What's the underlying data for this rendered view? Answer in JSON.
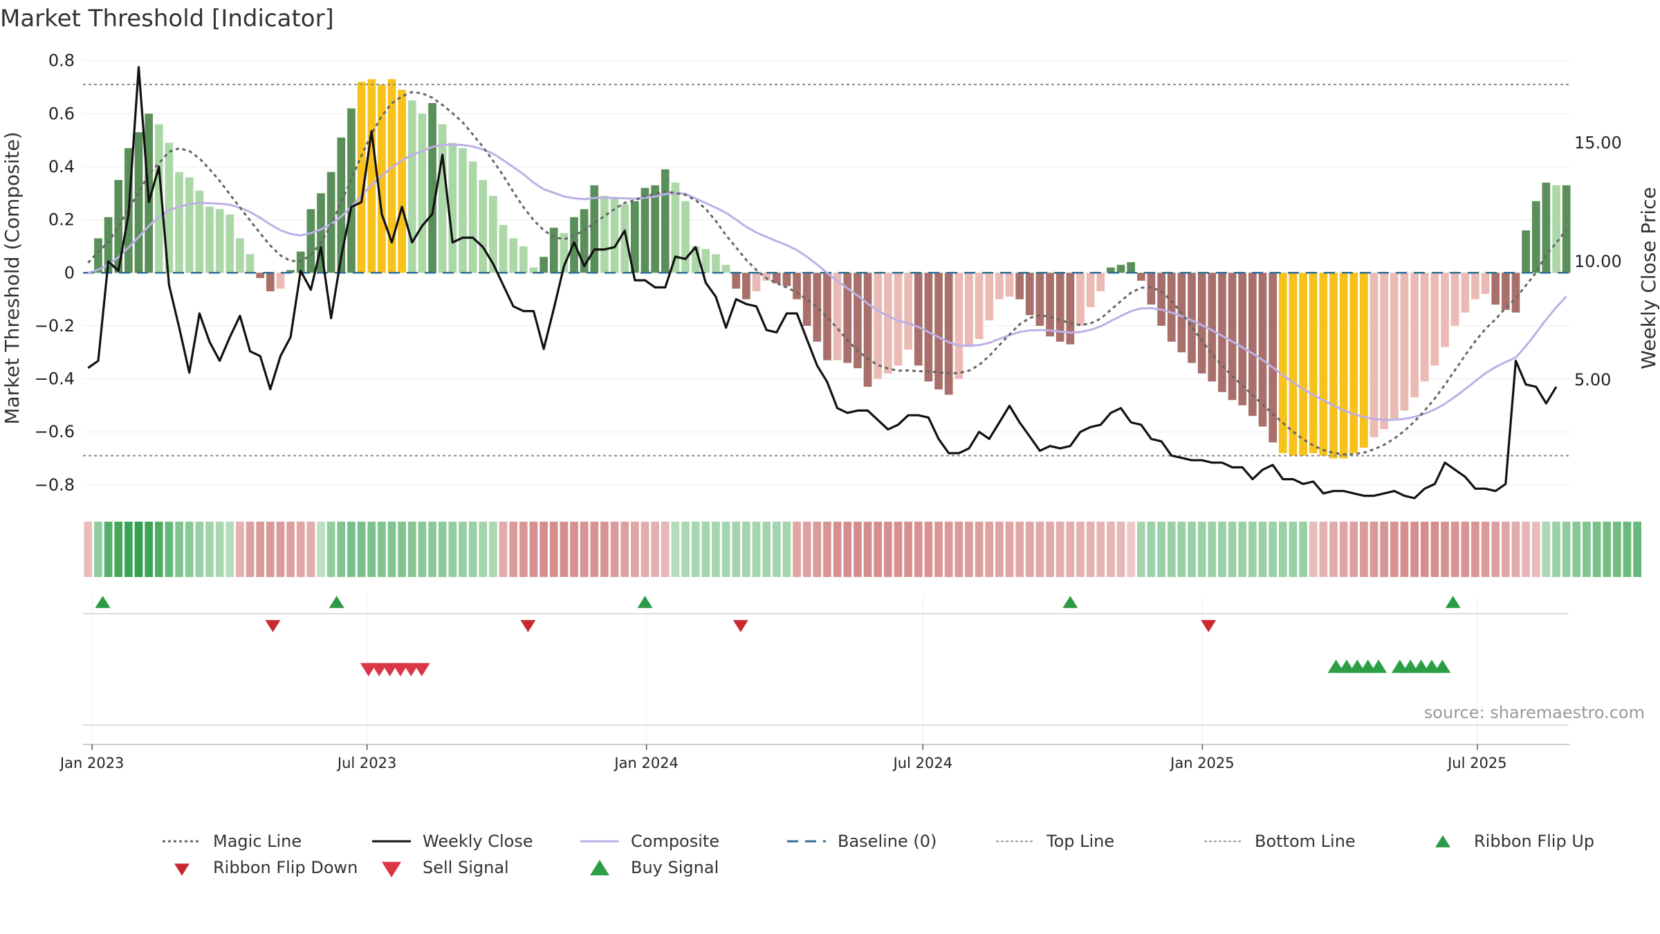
{
  "chart_data": {
    "type": "bar",
    "title": "Market Threshold [Indicator]",
    "source": "source: sharemaestro.com",
    "y_left": {
      "label": "Market Threshold (Composite)",
      "range": [
        -0.85,
        0.82
      ],
      "ticks": [
        0.8,
        0.6,
        0.4,
        0.2,
        0,
        -0.2,
        -0.4,
        -0.6,
        -0.8
      ],
      "tick_labels": [
        "0.8",
        "0.6",
        "0.4",
        "0.2",
        "0",
        "−0.2",
        "−0.4",
        "−0.6",
        "−0.8"
      ]
    },
    "y_right": {
      "label": "Weekly Close Price",
      "range": [
        0,
        18.7
      ],
      "ticks": [
        15,
        10,
        5
      ],
      "tick_labels": [
        "15.00",
        "10.00",
        "5.00"
      ]
    },
    "x_axis": {
      "start": "2022-12-26",
      "end": "2025-09-01",
      "ticks": [
        {
          "date": "2023-01-01",
          "label": "Jan 2023"
        },
        {
          "date": "2023-07-01",
          "label": "Jul 2023"
        },
        {
          "date": "2024-01-01",
          "label": "Jan 2024"
        },
        {
          "date": "2024-07-01",
          "label": "Jul 2024"
        },
        {
          "date": "2025-01-01",
          "label": "Jan 2025"
        },
        {
          "date": "2025-07-01",
          "label": "Jul 2025"
        }
      ]
    },
    "reference_lines": {
      "top_line": 0.71,
      "bottom_line": -0.69,
      "baseline": 0
    },
    "colors": {
      "dark_green": "#5a8f5a",
      "light_green": "#acd8a8",
      "dark_red": "#a9706b",
      "light_red": "#ebbab5",
      "gold": "#f7c21b",
      "close": "#111111",
      "composite": "#bcb0e6",
      "magic": "#666666",
      "baseline": "#2f6f95",
      "ribbon_flip_up": "#2b9a45",
      "ribbon_flip_down": "#c8282f",
      "sell": "#dc3545",
      "buy": "#2e9e46"
    },
    "composite_bars": [
      0.0,
      0.13,
      0.21,
      0.35,
      0.47,
      0.53,
      0.6,
      0.56,
      0.49,
      0.38,
      0.36,
      0.31,
      0.25,
      0.24,
      0.22,
      0.13,
      0.07,
      -0.02,
      -0.07,
      -0.06,
      0.01,
      0.08,
      0.24,
      0.3,
      0.38,
      0.51,
      0.62,
      0.72,
      0.73,
      0.71,
      0.73,
      0.69,
      0.65,
      0.6,
      0.64,
      0.56,
      0.49,
      0.47,
      0.42,
      0.35,
      0.29,
      0.18,
      0.13,
      0.1,
      0.02,
      0.06,
      0.17,
      0.15,
      0.21,
      0.24,
      0.33,
      0.29,
      0.28,
      0.26,
      0.27,
      0.32,
      0.33,
      0.39,
      0.34,
      0.27,
      0.1,
      0.09,
      0.07,
      0.03,
      -0.06,
      -0.1,
      -0.07,
      -0.03,
      -0.04,
      -0.05,
      -0.1,
      -0.2,
      -0.26,
      -0.33,
      -0.33,
      -0.34,
      -0.36,
      -0.43,
      -0.4,
      -0.38,
      -0.35,
      -0.29,
      -0.35,
      -0.41,
      -0.44,
      -0.46,
      -0.4,
      -0.28,
      -0.25,
      -0.18,
      -0.1,
      -0.09,
      -0.1,
      -0.16,
      -0.2,
      -0.24,
      -0.26,
      -0.27,
      -0.2,
      -0.13,
      -0.07,
      0.02,
      0.03,
      0.04,
      -0.03,
      -0.12,
      -0.2,
      -0.26,
      -0.3,
      -0.34,
      -0.38,
      -0.41,
      -0.45,
      -0.48,
      -0.5,
      -0.54,
      -0.58,
      -0.64,
      -0.68,
      -0.69,
      -0.69,
      -0.68,
      -0.69,
      -0.7,
      -0.7,
      -0.68,
      -0.66,
      -0.62,
      -0.59,
      -0.55,
      -0.52,
      -0.47,
      -0.41,
      -0.35,
      -0.28,
      -0.2,
      -0.15,
      -0.1,
      -0.08,
      -0.12,
      -0.14,
      -0.15,
      0.16,
      0.27,
      0.34,
      0.33,
      0.33
    ],
    "weekly_close": [
      5.5,
      5.8,
      10.0,
      9.6,
      12.0,
      18.2,
      12.5,
      14.0,
      9.0,
      7.2,
      5.3,
      7.8,
      6.6,
      5.8,
      6.8,
      7.7,
      6.2,
      6.0,
      4.6,
      6.0,
      6.8,
      9.6,
      8.8,
      10.6,
      7.6,
      10.2,
      12.3,
      12.5,
      15.5,
      12.0,
      10.8,
      12.3,
      10.8,
      11.5,
      12.0,
      14.5,
      10.8,
      11.0,
      11.0,
      10.6,
      9.9,
      9.0,
      8.1,
      7.9,
      7.9,
      6.3,
      8.0,
      9.8,
      10.8,
      9.8,
      10.5,
      10.5,
      10.6,
      11.3,
      9.2,
      9.2,
      8.9,
      8.9,
      10.2,
      10.1,
      10.6,
      9.1,
      8.5,
      7.2,
      8.4,
      8.2,
      8.1,
      7.1,
      7.0,
      7.8,
      7.8,
      6.7,
      5.6,
      4.9,
      3.8,
      3.6,
      3.7,
      3.7,
      3.3,
      2.9,
      3.1,
      3.5,
      3.5,
      3.4,
      2.5,
      1.9,
      1.9,
      2.1,
      2.8,
      2.5,
      3.2,
      3.9,
      3.2,
      2.6,
      2.0,
      2.2,
      2.1,
      2.2,
      2.8,
      3.0,
      3.1,
      3.6,
      3.8,
      3.2,
      3.1,
      2.5,
      2.4,
      1.8,
      1.7,
      1.6,
      1.6,
      1.5,
      1.5,
      1.3,
      1.3,
      0.8,
      1.2,
      1.4,
      0.8,
      0.8,
      0.6,
      0.7,
      0.2,
      0.3,
      0.3,
      0.2,
      0.1,
      0.1,
      0.2,
      0.3,
      0.1,
      0.0,
      0.4,
      0.6,
      1.5,
      1.2,
      0.9,
      0.4,
      0.4,
      0.3,
      0.6,
      5.8,
      4.8,
      4.7,
      4.0,
      4.7
    ],
    "ribbon": [
      -0.3,
      0.45,
      0.8,
      0.9,
      0.95,
      1.0,
      0.95,
      0.85,
      0.7,
      0.55,
      0.5,
      0.4,
      0.35,
      0.3,
      0.25,
      -0.4,
      -0.55,
      -0.6,
      -0.62,
      -0.6,
      -0.55,
      -0.5,
      -0.45,
      0.2,
      0.45,
      0.55,
      0.6,
      0.6,
      0.58,
      0.55,
      0.55,
      0.55,
      0.52,
      0.5,
      0.5,
      0.48,
      0.45,
      0.42,
      0.4,
      0.35,
      0.3,
      -0.45,
      -0.6,
      -0.65,
      -0.7,
      -0.72,
      -0.72,
      -0.72,
      -0.7,
      -0.68,
      -0.66,
      -0.65,
      -0.6,
      -0.55,
      -0.5,
      -0.45,
      -0.4,
      -0.35,
      0.25,
      0.3,
      0.32,
      0.33,
      0.34,
      0.34,
      0.34,
      0.34,
      0.34,
      0.34,
      0.34,
      0.34,
      -0.5,
      -0.55,
      -0.6,
      -0.65,
      -0.7,
      -0.72,
      -0.72,
      -0.72,
      -0.72,
      -0.7,
      -0.7,
      -0.7,
      -0.68,
      -0.66,
      -0.64,
      -0.62,
      -0.6,
      -0.58,
      -0.56,
      -0.54,
      -0.52,
      -0.5,
      -0.5,
      -0.5,
      -0.48,
      -0.46,
      -0.44,
      -0.42,
      -0.4,
      -0.4,
      -0.38,
      -0.36,
      -0.34,
      -0.2,
      0.35,
      0.38,
      0.4,
      0.4,
      0.4,
      0.4,
      0.4,
      0.4,
      0.4,
      0.4,
      0.4,
      0.4,
      0.4,
      0.4,
      0.4,
      0.4,
      0.4,
      -0.3,
      -0.4,
      -0.45,
      -0.5,
      -0.55,
      -0.6,
      -0.62,
      -0.65,
      -0.68,
      -0.7,
      -0.72,
      -0.72,
      -0.72,
      -0.7,
      -0.68,
      -0.66,
      -0.64,
      -0.6,
      -0.56,
      -0.5,
      -0.45,
      -0.35,
      -0.3,
      0.3,
      0.4,
      0.45,
      0.5,
      0.55,
      0.6,
      0.62,
      0.65,
      0.68,
      0.7
    ],
    "ribbon_flip_up": [
      "2023-01-08",
      "2023-06-11",
      "2023-12-31",
      "2024-10-06",
      "2025-06-15"
    ],
    "ribbon_flip_down": [
      "2023-04-30",
      "2023-10-15",
      "2024-03-03",
      "2025-01-05"
    ],
    "sell_signals": [
      "2023-07-02",
      "2023-07-09",
      "2023-07-16",
      "2023-07-23",
      "2023-07-30",
      "2023-08-06"
    ],
    "buy_signals": [
      "2025-03-30",
      "2025-04-06",
      "2025-04-13",
      "2025-04-20",
      "2025-04-27",
      "2025-05-11",
      "2025-05-18",
      "2025-05-25",
      "2025-06-01",
      "2025-06-08"
    ],
    "legend": [
      {
        "key": "magic",
        "label": "Magic Line",
        "symbol": "dot-line"
      },
      {
        "key": "close",
        "label": "Weekly Close",
        "symbol": "solid-line"
      },
      {
        "key": "composite",
        "label": "Composite",
        "symbol": "light-line"
      },
      {
        "key": "baseline",
        "label": "Baseline (0)",
        "symbol": "dash-line"
      },
      {
        "key": "top",
        "label": "Top Line",
        "symbol": "grey-dot-line"
      },
      {
        "key": "bottom",
        "label": "Bottom Line",
        "symbol": "grey-dot-line"
      },
      {
        "key": "flipup",
        "label": "Ribbon Flip Up",
        "symbol": "tri-up"
      },
      {
        "key": "flipdown",
        "label": "Ribbon Flip Down",
        "symbol": "tri-down"
      },
      {
        "key": "sell",
        "label": "Sell Signal",
        "symbol": "tri-down-big"
      },
      {
        "key": "buy",
        "label": "Buy Signal",
        "symbol": "tri-up-big"
      }
    ]
  }
}
